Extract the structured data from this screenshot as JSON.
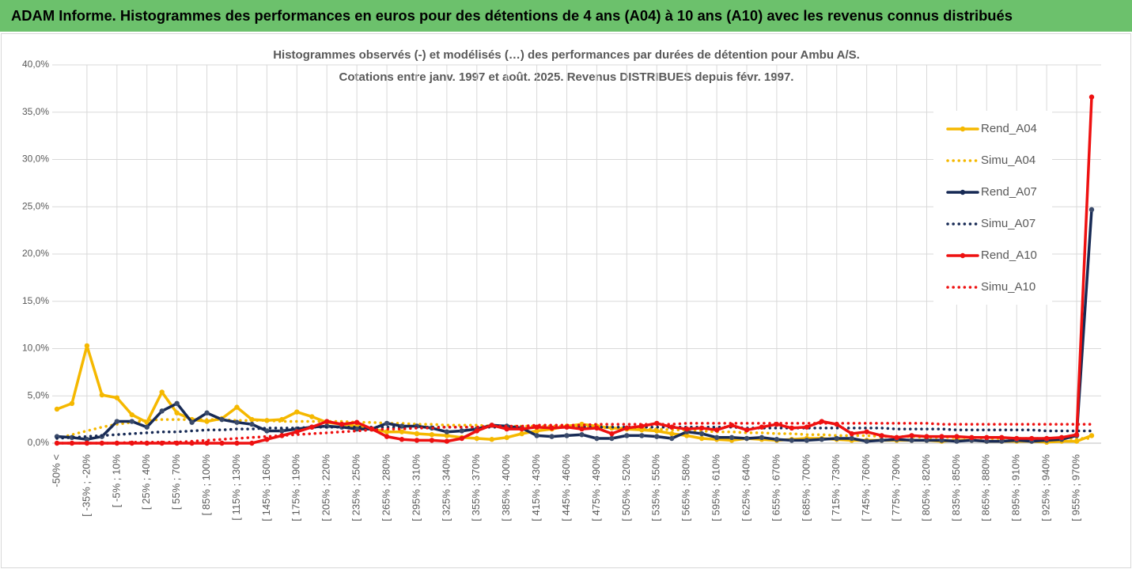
{
  "header": {
    "title": "ADAM Informe. Histogrammes des performances en euros pour des détentions de 4 ans (A04) à 10 ans (A10) avec les revenus connus distribués"
  },
  "chart_data": {
    "type": "line",
    "title": "Histogrammes observés (-) et modélisés (…) des performances par durées de détention pour Ambu A/S.",
    "subtitle": "Cotations entre janv. 1997 et août. 2025. Revenus DISTRIBUES depuis févr. 1997.",
    "categories": [
      "-50% <",
      null,
      "[ -35% ; -20%",
      null,
      "[ -5% ; 10%",
      null,
      "[ 25% ; 40%",
      null,
      "[ 55% ; 70%",
      null,
      "[ 85% ; 100%",
      null,
      "[ 115% ; 130%",
      null,
      "[ 145% ; 160%",
      null,
      "[ 175% ; 190%",
      null,
      "[ 205% ; 220%",
      null,
      "[ 235% ; 250%",
      null,
      "[ 265% ; 280%",
      null,
      "[ 295% ; 310%",
      null,
      "[ 325% ; 340%",
      null,
      "[ 355% ; 370%",
      null,
      "[ 385% ; 400%",
      null,
      "[ 415% ; 430%",
      null,
      "[ 445% ; 460%",
      null,
      "[ 475% ; 490%",
      null,
      "[ 505% ; 520%",
      null,
      "[ 535% ; 550%",
      null,
      "[ 565% ; 580%",
      null,
      "[ 595% ; 610%",
      null,
      "[ 625% ; 640%",
      null,
      "[ 655% ; 670%",
      null,
      "[ 685% ; 700%",
      null,
      "[ 715% ; 730%",
      null,
      "[ 745% ; 760%",
      null,
      "[ 775% ; 790%",
      null,
      "[ 805% ; 820%",
      null,
      "[ 835% ; 850%",
      null,
      "[ 865% ; 880%",
      null,
      "[ 895% ; 910%",
      null,
      "[ 925% ; 940%",
      null,
      "[ 955% ; 970%",
      null
    ],
    "ylim": [
      0,
      40
    ],
    "yticks": [
      {
        "value": 0,
        "label": "0,0%"
      },
      {
        "value": 5,
        "label": "5,0%"
      },
      {
        "value": 10,
        "label": "10,0%"
      },
      {
        "value": 15,
        "label": "15,0%"
      },
      {
        "value": 20,
        "label": "20,0%"
      },
      {
        "value": 25,
        "label": "25,0%"
      },
      {
        "value": 30,
        "label": "30,0%"
      },
      {
        "value": 35,
        "label": "35,0%"
      },
      {
        "value": 40,
        "label": "40,0%"
      }
    ],
    "grid": true,
    "legend": "right",
    "series": [
      {
        "name": "Rend_A04",
        "color": "#f5b800",
        "line_style": "solid",
        "marker": true,
        "values": [
          3.6,
          4.2,
          10.3,
          5.1,
          4.8,
          3.0,
          2.2,
          5.4,
          3.2,
          2.5,
          2.3,
          2.6,
          3.8,
          2.5,
          2.4,
          2.5,
          3.3,
          2.8,
          2.2,
          2.0,
          1.8,
          1.5,
          1.2,
          1.2,
          1.0,
          0.9,
          0.8,
          0.6,
          0.5,
          0.4,
          0.6,
          1.0,
          1.3,
          1.5,
          1.8,
          2.0,
          1.8,
          1.6,
          1.5,
          1.4,
          1.3,
          1.0,
          0.8,
          0.5,
          0.4,
          0.3,
          0.5,
          0.4,
          0.3,
          0.4,
          0.5,
          0.5,
          0.4,
          0.3,
          0.3,
          0.3,
          0.3,
          0.3,
          0.3,
          0.2,
          0.3,
          0.3,
          0.2,
          0.2,
          0.2,
          0.2,
          0.1,
          0.2,
          0.2,
          0.8
        ]
      },
      {
        "name": "Simu_A04",
        "color": "#f5b800",
        "line_style": "dotted",
        "marker": false,
        "values": [
          0.5,
          0.9,
          1.3,
          1.7,
          2.0,
          2.2,
          2.4,
          2.5,
          2.5,
          2.5,
          2.5,
          2.5,
          2.4,
          2.4,
          2.4,
          2.3,
          2.3,
          2.3,
          2.3,
          2.3,
          2.2,
          2.2,
          2.1,
          2.1,
          2.0,
          2.0,
          1.9,
          1.9,
          1.9,
          1.8,
          1.8,
          1.8,
          1.8,
          1.8,
          1.8,
          1.7,
          1.7,
          1.6,
          1.6,
          1.5,
          1.5,
          1.4,
          1.4,
          1.3,
          1.2,
          1.2,
          1.1,
          1.1,
          1.0,
          1.0,
          0.9,
          0.9,
          0.8,
          0.8,
          0.8,
          0.7,
          0.7,
          0.7,
          0.6,
          0.6,
          0.6,
          0.6,
          0.5,
          0.5,
          0.5,
          0.5,
          0.5,
          0.5,
          0.5,
          0.5
        ]
      },
      {
        "name": "Rend_A07",
        "color": "#172a55",
        "line_style": "solid",
        "marker": true,
        "values": [
          0.7,
          0.6,
          0.4,
          0.7,
          2.3,
          2.3,
          1.7,
          3.4,
          4.2,
          2.2,
          3.2,
          2.5,
          2.2,
          2.0,
          1.3,
          1.3,
          1.5,
          1.7,
          1.8,
          1.7,
          1.5,
          1.5,
          2.1,
          1.8,
          1.8,
          1.6,
          1.2,
          1.3,
          1.5,
          1.9,
          1.8,
          1.6,
          0.8,
          0.7,
          0.8,
          0.9,
          0.5,
          0.5,
          0.8,
          0.8,
          0.7,
          0.5,
          1.2,
          1.0,
          0.6,
          0.6,
          0.5,
          0.6,
          0.4,
          0.3,
          0.3,
          0.4,
          0.5,
          0.5,
          0.2,
          0.3,
          0.4,
          0.3,
          0.3,
          0.3,
          0.2,
          0.3,
          0.2,
          0.2,
          0.3,
          0.2,
          0.3,
          0.4,
          0.8,
          24.7
        ]
      },
      {
        "name": "Simu_A07",
        "color": "#172a55",
        "line_style": "dotted",
        "marker": false,
        "values": [
          0.5,
          0.6,
          0.7,
          0.8,
          0.9,
          1.0,
          1.1,
          1.2,
          1.2,
          1.3,
          1.4,
          1.4,
          1.5,
          1.5,
          1.6,
          1.6,
          1.6,
          1.7,
          1.7,
          1.7,
          1.7,
          1.7,
          1.7,
          1.7,
          1.7,
          1.7,
          1.7,
          1.7,
          1.7,
          1.7,
          1.7,
          1.7,
          1.7,
          1.7,
          1.7,
          1.7,
          1.7,
          1.7,
          1.7,
          1.7,
          1.7,
          1.7,
          1.7,
          1.7,
          1.7,
          1.7,
          1.6,
          1.6,
          1.6,
          1.6,
          1.6,
          1.6,
          1.6,
          1.6,
          1.6,
          1.6,
          1.5,
          1.5,
          1.5,
          1.5,
          1.4,
          1.4,
          1.4,
          1.4,
          1.4,
          1.4,
          1.3,
          1.3,
          1.3,
          1.3
        ]
      },
      {
        "name": "Rend_A10",
        "color": "#ee1111",
        "line_style": "solid",
        "marker": true,
        "values": [
          0.0,
          0.0,
          0.0,
          0.0,
          0.0,
          0.0,
          0.0,
          0.0,
          0.0,
          0.0,
          0.0,
          0.0,
          0.0,
          0.0,
          0.4,
          0.8,
          1.2,
          1.7,
          2.3,
          2.0,
          2.2,
          1.5,
          0.7,
          0.4,
          0.3,
          0.3,
          0.2,
          0.5,
          1.3,
          1.9,
          1.5,
          1.5,
          1.7,
          1.6,
          1.7,
          1.5,
          1.6,
          1.0,
          1.6,
          1.8,
          2.1,
          1.7,
          1.5,
          1.6,
          1.4,
          1.9,
          1.4,
          1.7,
          2.0,
          1.6,
          1.7,
          2.3,
          2.0,
          1.0,
          1.2,
          0.8,
          0.6,
          0.8,
          0.7,
          0.7,
          0.7,
          0.6,
          0.6,
          0.6,
          0.5,
          0.5,
          0.5,
          0.6,
          0.9,
          36.6
        ]
      },
      {
        "name": "Simu_A10",
        "color": "#ee1111",
        "line_style": "dotted",
        "marker": false,
        "values": [
          0.0,
          0.0,
          0.0,
          0.0,
          0.0,
          0.1,
          0.1,
          0.1,
          0.1,
          0.2,
          0.3,
          0.4,
          0.5,
          0.6,
          0.7,
          0.8,
          0.9,
          1.0,
          1.1,
          1.2,
          1.3,
          1.4,
          1.5,
          1.5,
          1.6,
          1.6,
          1.7,
          1.7,
          1.7,
          1.8,
          1.8,
          1.8,
          1.9,
          1.9,
          1.9,
          1.9,
          2.0,
          2.0,
          2.0,
          2.0,
          2.0,
          2.0,
          2.1,
          2.1,
          2.1,
          2.1,
          2.1,
          2.1,
          2.1,
          2.1,
          2.1,
          2.1,
          2.1,
          2.1,
          2.1,
          2.1,
          2.1,
          2.1,
          2.1,
          2.0,
          2.0,
          2.0,
          2.0,
          2.0,
          2.0,
          2.0,
          2.0,
          2.0,
          2.0,
          2.0
        ]
      }
    ]
  }
}
